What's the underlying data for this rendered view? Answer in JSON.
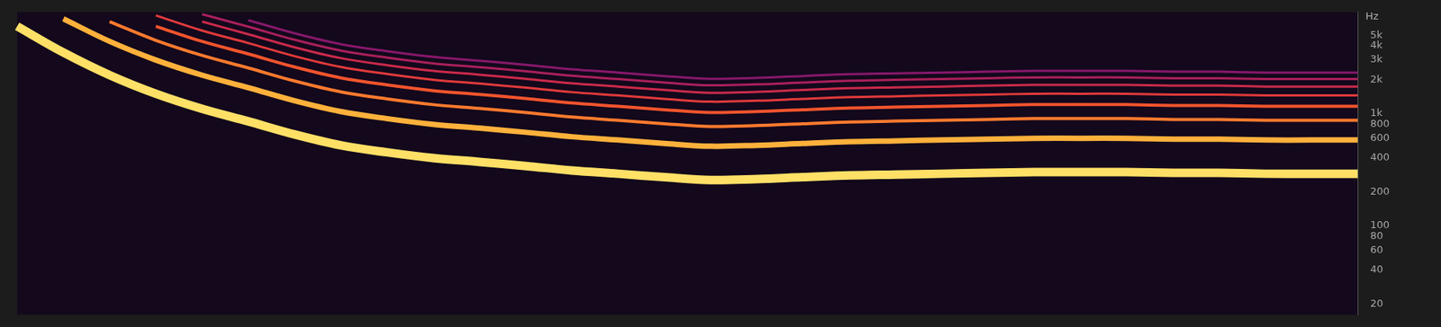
{
  "chart_data": {
    "type": "line",
    "ylabel": "Hz",
    "categories": [
      null,
      null,
      null,
      null,
      null,
      null,
      null,
      null,
      null,
      null,
      null,
      null,
      null,
      null,
      null,
      null,
      null,
      null,
      null,
      null,
      null,
      null,
      null,
      null,
      null,
      null,
      null,
      null,
      null,
      null
    ],
    "series": [
      {
        "color": "#ffe066",
        "values": [
          6000,
          3500,
          2200,
          1500,
          1100,
          850,
          650,
          520,
          450,
          400,
          370,
          340,
          310,
          290,
          270,
          255,
          260,
          270,
          280,
          285,
          290,
          295,
          300,
          300,
          300,
          295,
          295,
          290,
          290,
          290
        ]
      },
      {
        "color": "#ffb13b",
        "values": [
          null,
          7000,
          4400,
          3000,
          2200,
          1700,
          1300,
          1040,
          900,
          800,
          740,
          680,
          620,
          580,
          540,
          510,
          520,
          540,
          560,
          570,
          580,
          590,
          600,
          600,
          600,
          590,
          590,
          580,
          580,
          580
        ]
      },
      {
        "color": "#ff7a2e",
        "values": [
          null,
          null,
          6600,
          4500,
          3300,
          2550,
          1950,
          1560,
          1350,
          1200,
          1110,
          1020,
          930,
          870,
          810,
          765,
          780,
          810,
          840,
          855,
          870,
          885,
          900,
          900,
          900,
          885,
          885,
          870,
          870,
          870
        ]
      },
      {
        "color": "#f2542d",
        "values": [
          null,
          null,
          null,
          6000,
          4400,
          3400,
          2600,
          2080,
          1800,
          1600,
          1480,
          1360,
          1240,
          1160,
          1080,
          1020,
          1040,
          1080,
          1120,
          1140,
          1160,
          1180,
          1200,
          1200,
          1200,
          1180,
          1180,
          1160,
          1160,
          1160
        ]
      },
      {
        "color": "#e03a3a",
        "values": [
          null,
          null,
          null,
          7500,
          5500,
          4250,
          3250,
          2600,
          2250,
          2000,
          1850,
          1700,
          1550,
          1450,
          1350,
          1275,
          1300,
          1350,
          1400,
          1425,
          1450,
          1475,
          1500,
          1500,
          1500,
          1475,
          1475,
          1450,
          1450,
          1450
        ]
      },
      {
        "color": "#c92a4a",
        "values": [
          null,
          null,
          null,
          null,
          6600,
          5100,
          3900,
          3120,
          2700,
          2400,
          2220,
          2040,
          1860,
          1740,
          1620,
          1530,
          1560,
          1620,
          1680,
          1710,
          1740,
          1770,
          1800,
          1800,
          1800,
          1770,
          1770,
          1740,
          1740,
          1740
        ]
      },
      {
        "color": "#a8205a",
        "values": [
          null,
          null,
          null,
          null,
          7700,
          5950,
          4550,
          3640,
          3150,
          2800,
          2590,
          2380,
          2170,
          2030,
          1890,
          1785,
          1820,
          1890,
          1960,
          1995,
          2030,
          2065,
          2100,
          2100,
          2100,
          2065,
          2065,
          2030,
          2030,
          2030
        ]
      },
      {
        "color": "#86186a",
        "values": [
          null,
          null,
          null,
          null,
          null,
          6800,
          5200,
          4160,
          3600,
          3200,
          2960,
          2720,
          2480,
          2320,
          2160,
          2040,
          2080,
          2160,
          2240,
          2280,
          2320,
          2360,
          2400,
          2400,
          2400,
          2360,
          2360,
          2320,
          2320,
          2320
        ]
      }
    ],
    "ylim": [
      16,
      8000
    ],
    "yticks": [
      20,
      40,
      60,
      80,
      100,
      200,
      400,
      600,
      800,
      {
        "value": 1000,
        "label": "1k"
      },
      {
        "value": 2000,
        "label": "2k"
      },
      {
        "value": 3000,
        "label": "3k"
      },
      {
        "value": 4000,
        "label": "4k"
      },
      {
        "value": 5000,
        "label": "5k"
      }
    ],
    "log": "y",
    "grid": false,
    "tick_labels": "y"
  }
}
